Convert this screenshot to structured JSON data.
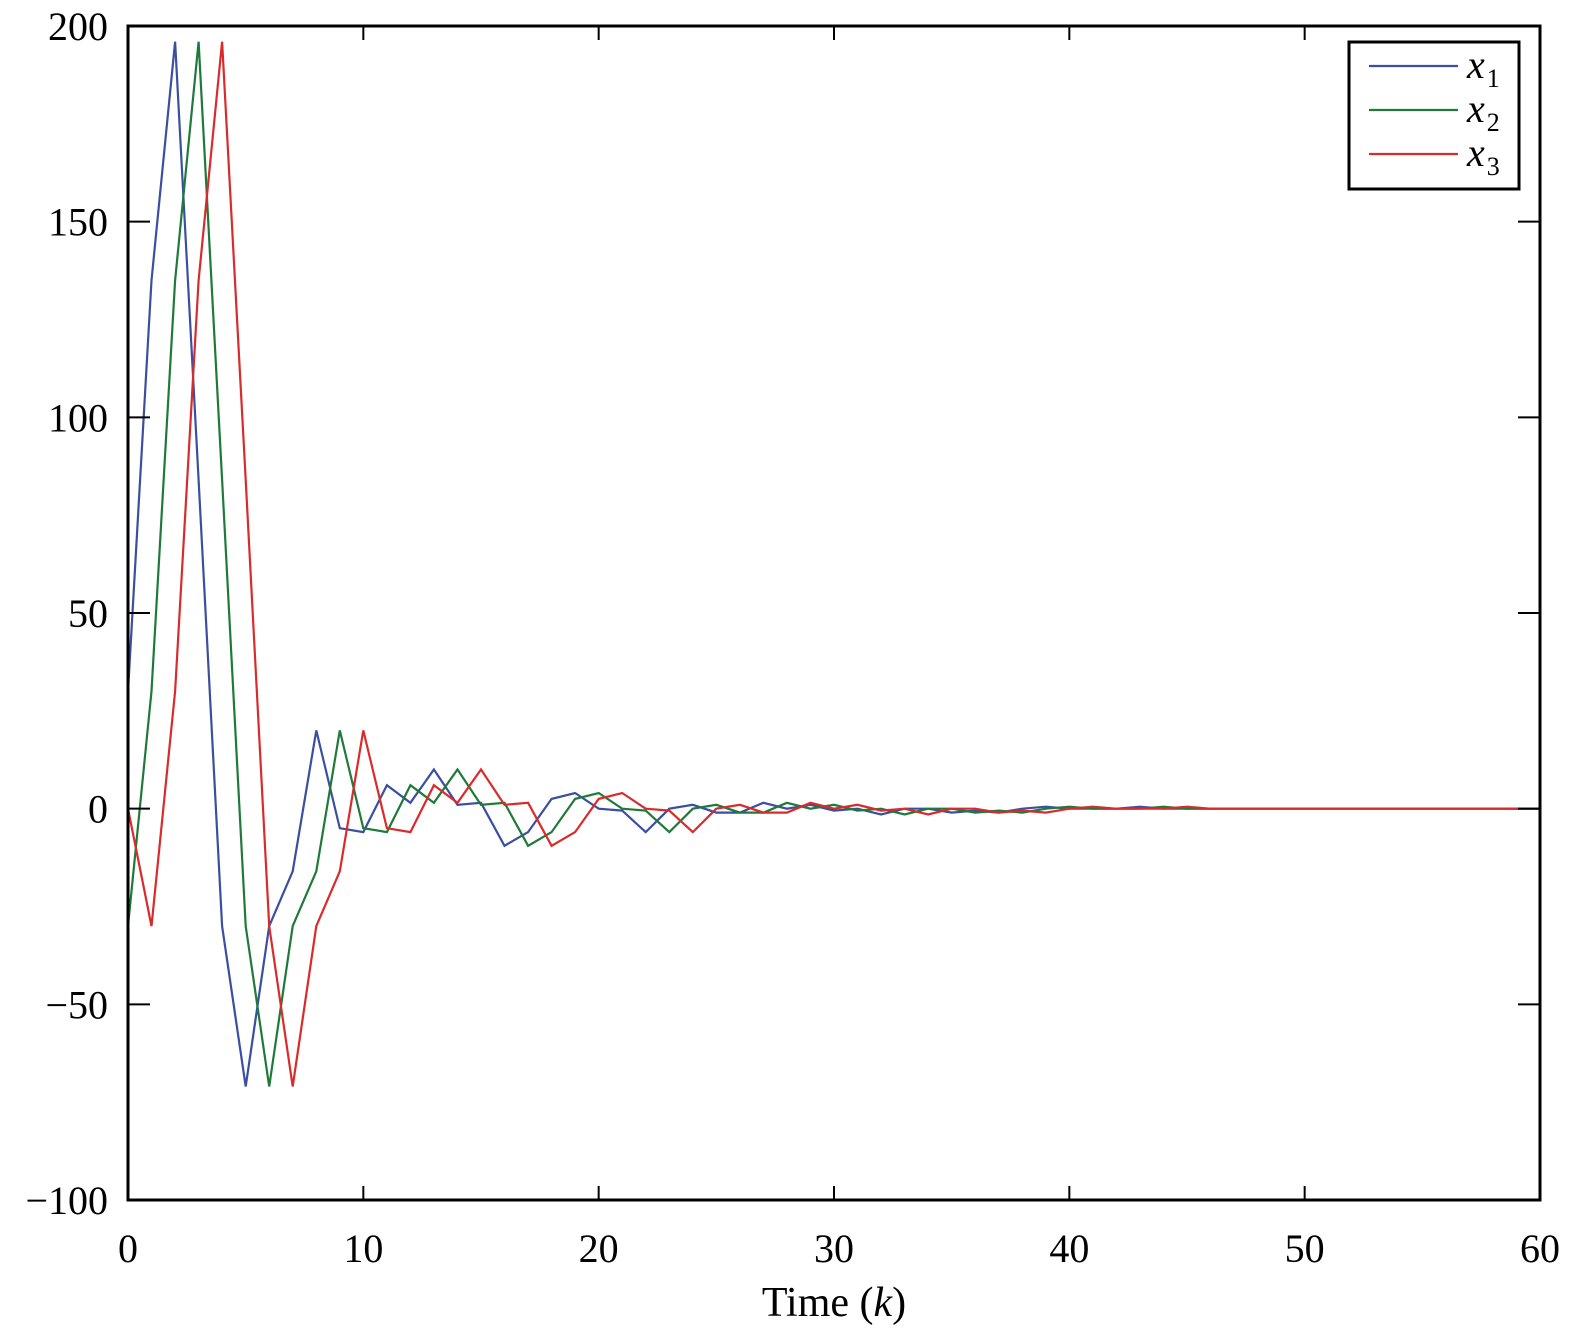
{
  "chart_data": {
    "type": "line",
    "title": "",
    "xlabel": "Time (k)",
    "ylabel": "",
    "xlim": [
      0,
      60
    ],
    "ylim": [
      -100,
      200
    ],
    "xticks": [
      0,
      10,
      20,
      30,
      40,
      50,
      60
    ],
    "yticks": [
      -100,
      -50,
      0,
      50,
      100,
      150,
      200
    ],
    "xtick_labels": [
      "0",
      "10",
      "20",
      "30",
      "40",
      "50",
      "60"
    ],
    "ytick_labels": [
      "−100",
      "−50",
      "0",
      "50",
      "100",
      "150",
      "200"
    ],
    "grid": false,
    "legend_position": "upper right",
    "x": [
      0,
      1,
      2,
      3,
      4,
      5,
      6,
      7,
      8,
      9,
      10,
      11,
      12,
      13,
      14,
      15,
      16,
      17,
      18,
      19,
      20,
      21,
      22,
      23,
      24,
      25,
      26,
      27,
      28,
      29,
      30,
      31,
      32,
      33,
      34,
      35,
      36,
      37,
      38,
      39,
      40,
      41,
      42,
      43,
      44,
      45,
      46,
      47,
      48,
      49,
      50,
      51,
      52,
      53,
      54,
      55,
      56,
      57,
      58,
      59,
      60
    ],
    "series": [
      {
        "name": "x1",
        "color": "#3a4fa0",
        "values": [
          30,
          135,
          196,
          84,
          -30,
          -71,
          -30,
          -16,
          20,
          -5,
          -6,
          6,
          1.5,
          10,
          1,
          1.5,
          -9.5,
          -6,
          2.5,
          4,
          0,
          -0.5,
          -6,
          0,
          1,
          -1,
          -1,
          1.5,
          0,
          1,
          -0.5,
          0,
          -1.5,
          0,
          0,
          -1,
          -0.5,
          -1,
          0,
          0.5,
          0,
          0,
          0,
          0.5,
          0,
          0,
          0,
          0,
          0,
          0,
          0,
          0,
          0,
          0,
          0,
          0,
          0,
          0,
          0,
          0,
          0
        ]
      },
      {
        "name": "x2",
        "color": "#1f7a3a",
        "values": [
          -30,
          30,
          135,
          196,
          84,
          -30,
          -71,
          -30,
          -16,
          20,
          -5,
          -6,
          6,
          1.5,
          10,
          1,
          1.5,
          -9.5,
          -6,
          2.5,
          4,
          0,
          -0.5,
          -6,
          0,
          1,
          -1,
          -1,
          1.5,
          0,
          1,
          -0.5,
          0,
          -1.5,
          0,
          0,
          -1,
          -0.5,
          -1,
          0,
          0.5,
          0,
          0,
          0,
          0.5,
          0,
          0,
          0,
          0,
          0,
          0,
          0,
          0,
          0,
          0,
          0,
          0,
          0,
          0,
          0,
          0
        ]
      },
      {
        "name": "x3",
        "color": "#d92b2b",
        "values": [
          0,
          -30,
          30,
          135,
          196,
          84,
          -30,
          -71,
          -30,
          -16,
          20,
          -5,
          -6,
          6,
          1.5,
          10,
          1,
          1.5,
          -9.5,
          -6,
          2.5,
          4,
          0,
          -0.5,
          -6,
          0,
          1,
          -1,
          -1,
          1.5,
          0,
          1,
          -0.5,
          0,
          -1.5,
          0,
          0,
          -1,
          -0.5,
          -1,
          0,
          0.5,
          0,
          0,
          0,
          0.5,
          0,
          0,
          0,
          0,
          0,
          0,
          0,
          0,
          0,
          0,
          0,
          0,
          0,
          0,
          0
        ]
      }
    ],
    "legend": [
      {
        "label_main": "x",
        "label_sub": "1"
      },
      {
        "label_main": "x",
        "label_sub": "2"
      },
      {
        "label_main": "x",
        "label_sub": "3"
      }
    ]
  }
}
